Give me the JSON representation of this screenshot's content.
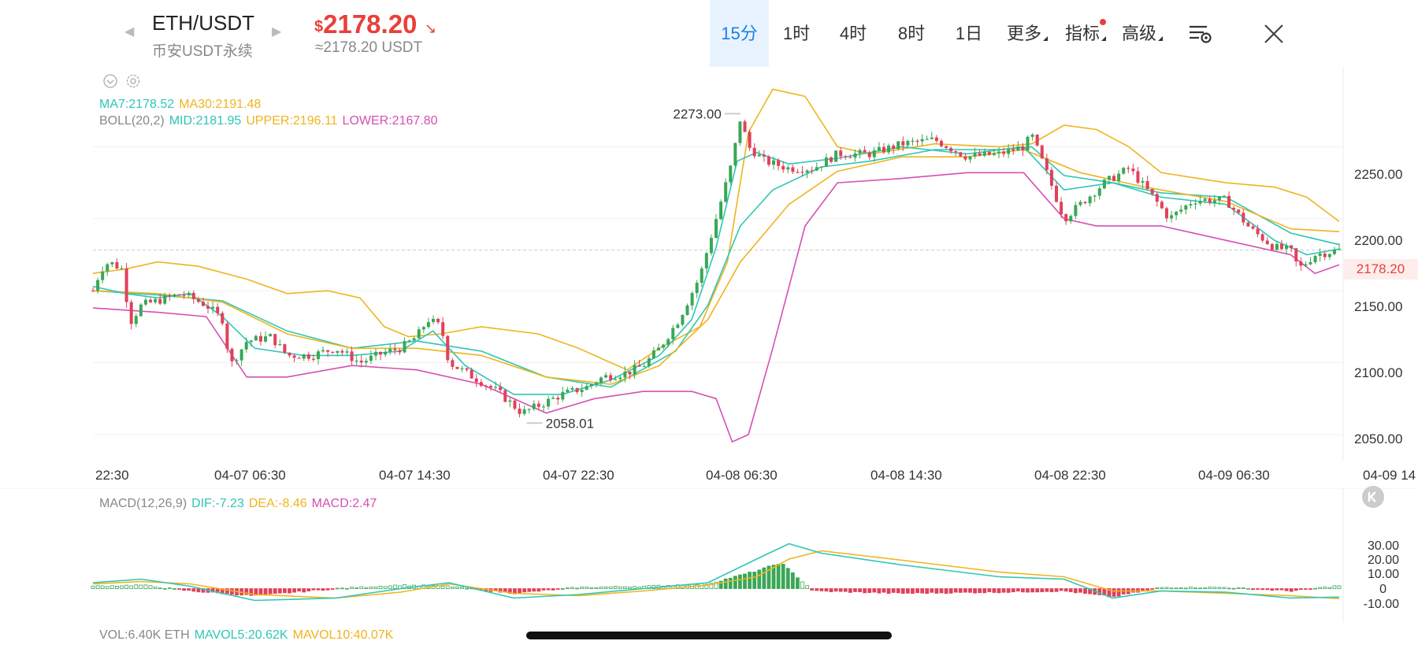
{
  "header": {
    "pair": "ETH/USDT",
    "market": "币安USDT永续",
    "currency_symbol": "$",
    "price": "2178.20",
    "price_approx": "≈2178.20 USDT"
  },
  "tabs": [
    {
      "label": "15分",
      "active": true
    },
    {
      "label": "1时"
    },
    {
      "label": "4时"
    },
    {
      "label": "8时"
    },
    {
      "label": "1日"
    },
    {
      "label": "更多"
    },
    {
      "label": "指标"
    },
    {
      "label": "高级"
    }
  ],
  "legend": {
    "ma7": "MA7:2178.52",
    "ma30": "MA30:2191.48",
    "boll_name": "BOLL(20,2)",
    "boll_mid": "MID:2181.95",
    "boll_upper": "UPPER:2196.11",
    "boll_lower": "LOWER:2167.80",
    "macd_name": "MACD(12,26,9)",
    "dif": "DIF:-7.23",
    "dea": "DEA:-8.46",
    "macd": "MACD:2.47",
    "vol": "VOL:6.40K ETH",
    "mavol5": "MAVOL5:20.62K",
    "mavol10": "MAVOL10:40.07K"
  },
  "annotations": {
    "high": "2273.00",
    "low": "2058.01",
    "current": "2178.20"
  },
  "colors": {
    "up": "#3aa757",
    "down": "#e0415a",
    "ma7": "#2fc6b4",
    "ma30": "#f0b41e",
    "mid": "#2fc6b4",
    "upper": "#f0b41e",
    "lower": "#d64fb3",
    "accent": "#1a7fe8",
    "price": "#e8403a"
  },
  "chart_data": [
    {
      "type": "candlestick",
      "title": "ETH/USDT 15分",
      "x_labels": [
        "22:30",
        "04-07 06:30",
        "04-07 14:30",
        "04-07 22:30",
        "04-08 06:30",
        "04-08 14:30",
        "04-08 22:30",
        "04-09 06:30",
        "04-09 14"
      ],
      "y_ticks": [
        "2250.00",
        "2200.00",
        "2150.00",
        "2100.00",
        "2050.00"
      ],
      "ylim": [
        2033,
        2300
      ],
      "close_path": [
        [
          0,
          2150
        ],
        [
          5,
          2165
        ],
        [
          10,
          2170
        ],
        [
          18,
          2165
        ],
        [
          23,
          2128
        ],
        [
          30,
          2140
        ],
        [
          40,
          2143
        ],
        [
          55,
          2148
        ],
        [
          70,
          2140
        ],
        [
          80,
          2130
        ],
        [
          85,
          2098
        ],
        [
          95,
          2115
        ],
        [
          110,
          2118
        ],
        [
          120,
          2105
        ],
        [
          135,
          2105
        ],
        [
          150,
          2110
        ],
        [
          165,
          2100
        ],
        [
          180,
          2107
        ],
        [
          190,
          2110
        ],
        [
          200,
          2118
        ],
        [
          207,
          2130
        ],
        [
          215,
          2125
        ],
        [
          220,
          2100
        ],
        [
          235,
          2090
        ],
        [
          250,
          2080
        ],
        [
          265,
          2065
        ],
        [
          275,
          2070
        ],
        [
          290,
          2078
        ],
        [
          305,
          2083
        ],
        [
          315,
          2090
        ],
        [
          330,
          2093
        ],
        [
          340,
          2098
        ],
        [
          350,
          2110
        ],
        [
          362,
          2130
        ],
        [
          375,
          2160
        ],
        [
          385,
          2200
        ],
        [
          395,
          2240
        ],
        [
          400,
          2270
        ],
        [
          405,
          2250
        ],
        [
          415,
          2240
        ],
        [
          430,
          2235
        ],
        [
          445,
          2235
        ],
        [
          460,
          2245
        ],
        [
          480,
          2245
        ],
        [
          500,
          2252
        ],
        [
          520,
          2255
        ],
        [
          540,
          2243
        ],
        [
          560,
          2245
        ],
        [
          575,
          2250
        ],
        [
          580,
          2258
        ],
        [
          590,
          2230
        ],
        [
          600,
          2200
        ],
        [
          610,
          2210
        ],
        [
          625,
          2225
        ],
        [
          640,
          2235
        ],
        [
          655,
          2215
        ],
        [
          665,
          2200
        ],
        [
          680,
          2213
        ],
        [
          700,
          2213
        ],
        [
          715,
          2193
        ],
        [
          730,
          2180
        ],
        [
          740,
          2178
        ],
        [
          745,
          2165
        ],
        [
          755,
          2175
        ],
        [
          770,
          2178.2
        ]
      ],
      "ma7": [
        [
          0,
          2153
        ],
        [
          20,
          2148
        ],
        [
          40,
          2145
        ],
        [
          60,
          2148
        ],
        [
          80,
          2132
        ],
        [
          100,
          2110
        ],
        [
          130,
          2105
        ],
        [
          160,
          2105
        ],
        [
          190,
          2108
        ],
        [
          210,
          2122
        ],
        [
          230,
          2098
        ],
        [
          260,
          2078
        ],
        [
          290,
          2078
        ],
        [
          320,
          2088
        ],
        [
          350,
          2105
        ],
        [
          370,
          2130
        ],
        [
          385,
          2180
        ],
        [
          398,
          2240
        ],
        [
          410,
          2246
        ],
        [
          430,
          2238
        ],
        [
          460,
          2242
        ],
        [
          500,
          2250
        ],
        [
          540,
          2245
        ],
        [
          575,
          2250
        ],
        [
          600,
          2220
        ],
        [
          630,
          2225
        ],
        [
          660,
          2215
        ],
        [
          700,
          2210
        ],
        [
          730,
          2185
        ],
        [
          750,
          2175
        ],
        [
          770,
          2179
        ]
      ],
      "ma30": [
        [
          0,
          2150
        ],
        [
          40,
          2148
        ],
        [
          80,
          2142
        ],
        [
          120,
          2120
        ],
        [
          160,
          2110
        ],
        [
          200,
          2110
        ],
        [
          240,
          2105
        ],
        [
          280,
          2090
        ],
        [
          320,
          2085
        ],
        [
          350,
          2098
        ],
        [
          380,
          2130
        ],
        [
          400,
          2170
        ],
        [
          430,
          2210
        ],
        [
          460,
          2233
        ],
        [
          500,
          2243
        ],
        [
          540,
          2243
        ],
        [
          575,
          2248
        ],
        [
          610,
          2232
        ],
        [
          650,
          2222
        ],
        [
          700,
          2212
        ],
        [
          740,
          2193
        ],
        [
          770,
          2191
        ]
      ],
      "boll_upper": [
        [
          0,
          2162
        ],
        [
          20,
          2165
        ],
        [
          40,
          2170
        ],
        [
          65,
          2167
        ],
        [
          95,
          2158
        ],
        [
          120,
          2148
        ],
        [
          145,
          2150
        ],
        [
          165,
          2145
        ],
        [
          180,
          2125
        ],
        [
          195,
          2118
        ],
        [
          215,
          2120
        ],
        [
          240,
          2125
        ],
        [
          275,
          2120
        ],
        [
          300,
          2110
        ],
        [
          330,
          2095
        ],
        [
          350,
          2110
        ],
        [
          375,
          2125
        ],
        [
          392,
          2170
        ],
        [
          405,
          2260
        ],
        [
          420,
          2290
        ],
        [
          440,
          2285
        ],
        [
          460,
          2250
        ],
        [
          480,
          2245
        ],
        [
          520,
          2252
        ],
        [
          560,
          2250
        ],
        [
          580,
          2252
        ],
        [
          600,
          2265
        ],
        [
          620,
          2262
        ],
        [
          640,
          2250
        ],
        [
          660,
          2232
        ],
        [
          700,
          2225
        ],
        [
          730,
          2222
        ],
        [
          750,
          2215
        ],
        [
          770,
          2198
        ]
      ],
      "boll_mid": [
        [
          0,
          2150
        ],
        [
          40,
          2147
        ],
        [
          80,
          2143
        ],
        [
          120,
          2122
        ],
        [
          160,
          2110
        ],
        [
          200,
          2115
        ],
        [
          240,
          2108
        ],
        [
          280,
          2090
        ],
        [
          320,
          2083
        ],
        [
          360,
          2108
        ],
        [
          380,
          2140
        ],
        [
          400,
          2195
        ],
        [
          420,
          2220
        ],
        [
          450,
          2236
        ],
        [
          480,
          2240
        ],
        [
          520,
          2248
        ],
        [
          560,
          2248
        ],
        [
          580,
          2250
        ],
        [
          600,
          2230
        ],
        [
          630,
          2225
        ],
        [
          660,
          2218
        ],
        [
          700,
          2215
        ],
        [
          740,
          2190
        ],
        [
          770,
          2182
        ]
      ],
      "boll_lower": [
        [
          0,
          2138
        ],
        [
          40,
          2135
        ],
        [
          70,
          2132
        ],
        [
          95,
          2090
        ],
        [
          120,
          2090
        ],
        [
          160,
          2098
        ],
        [
          200,
          2095
        ],
        [
          240,
          2085
        ],
        [
          280,
          2065
        ],
        [
          310,
          2075
        ],
        [
          340,
          2080
        ],
        [
          370,
          2080
        ],
        [
          385,
          2075
        ],
        [
          395,
          2045
        ],
        [
          405,
          2050
        ],
        [
          420,
          2110
        ],
        [
          440,
          2195
        ],
        [
          460,
          2225
        ],
        [
          500,
          2228
        ],
        [
          540,
          2232
        ],
        [
          575,
          2232
        ],
        [
          600,
          2200
        ],
        [
          620,
          2195
        ],
        [
          660,
          2195
        ],
        [
          700,
          2185
        ],
        [
          740,
          2175
        ],
        [
          755,
          2162
        ],
        [
          770,
          2168
        ]
      ]
    },
    {
      "type": "macd",
      "y_ticks": [
        "30.00",
        "20.00",
        "10.00",
        "0",
        "-10.00"
      ],
      "ylim": [
        -15,
        45
      ],
      "dif": [
        [
          0,
          5
        ],
        [
          30,
          8
        ],
        [
          60,
          2
        ],
        [
          100,
          -10
        ],
        [
          150,
          -8
        ],
        [
          190,
          0
        ],
        [
          220,
          5
        ],
        [
          260,
          -8
        ],
        [
          300,
          -5
        ],
        [
          340,
          0
        ],
        [
          380,
          5
        ],
        [
          410,
          25
        ],
        [
          430,
          38
        ],
        [
          450,
          30
        ],
        [
          500,
          20
        ],
        [
          560,
          10
        ],
        [
          600,
          8
        ],
        [
          630,
          -8
        ],
        [
          660,
          -2
        ],
        [
          700,
          -3
        ],
        [
          740,
          -8
        ],
        [
          770,
          -7.23
        ]
      ],
      "dea": [
        [
          0,
          4
        ],
        [
          30,
          6
        ],
        [
          60,
          4
        ],
        [
          100,
          -5
        ],
        [
          150,
          -8
        ],
        [
          190,
          -3
        ],
        [
          220,
          4
        ],
        [
          260,
          -4
        ],
        [
          300,
          -6
        ],
        [
          340,
          -2
        ],
        [
          380,
          3
        ],
        [
          410,
          10
        ],
        [
          430,
          25
        ],
        [
          450,
          32
        ],
        [
          500,
          24
        ],
        [
          560,
          14
        ],
        [
          600,
          10
        ],
        [
          630,
          -2
        ],
        [
          660,
          -2
        ],
        [
          700,
          -4
        ],
        [
          740,
          -6
        ],
        [
          770,
          -8.46
        ]
      ],
      "hist": [
        [
          0,
          2
        ],
        [
          30,
          3
        ],
        [
          60,
          -2
        ],
        [
          100,
          -6
        ],
        [
          150,
          0
        ],
        [
          190,
          3
        ],
        [
          220,
          2
        ],
        [
          260,
          -4
        ],
        [
          300,
          1
        ],
        [
          340,
          2
        ],
        [
          380,
          4
        ],
        [
          410,
          15
        ],
        [
          425,
          22
        ],
        [
          445,
          -2
        ],
        [
          500,
          -4
        ],
        [
          560,
          -3
        ],
        [
          600,
          -2
        ],
        [
          630,
          -7
        ],
        [
          660,
          1
        ],
        [
          700,
          1
        ],
        [
          740,
          -2
        ],
        [
          770,
          2.47
        ]
      ]
    }
  ]
}
